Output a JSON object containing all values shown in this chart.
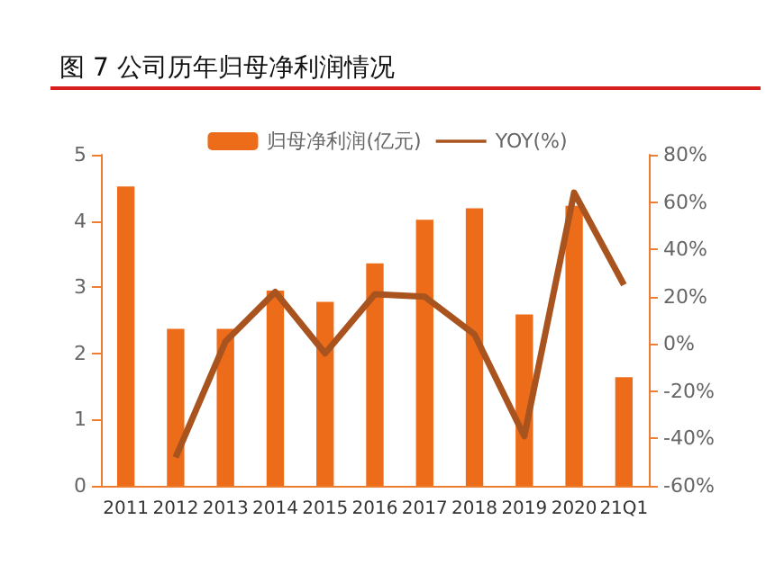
{
  "chart_data": {
    "type": "bar",
    "title": "图 7 公司历年归母净利润情况",
    "categories": [
      "2011",
      "2012",
      "2013",
      "2014",
      "2015",
      "2016",
      "2017",
      "2018",
      "2019",
      "2020",
      "21Q1"
    ],
    "series": [
      {
        "name": "归母净利润(亿元)",
        "color": "#ed6c1a",
        "values": [
          4.52,
          2.37,
          2.37,
          2.95,
          2.78,
          3.36,
          4.02,
          4.19,
          2.59,
          4.23,
          1.64
        ]
      },
      {
        "name": "YOY(%)",
        "type": "line",
        "axis": "y2",
        "color": "#a9531f",
        "values": [
          null,
          -48,
          1,
          22,
          -4,
          21,
          20,
          4,
          -39,
          64,
          25
        ]
      }
    ],
    "ylim": [
      0,
      5
    ],
    "yticks": [
      0,
      1,
      2,
      3,
      4,
      5
    ],
    "y2lim": [
      -60,
      80
    ],
    "y2ticks": [
      {
        "value": -60,
        "label": "-60%"
      },
      {
        "value": -40,
        "label": "-40%"
      },
      {
        "value": -20,
        "label": "-20%"
      },
      {
        "value": 0,
        "label": "0%"
      },
      {
        "value": 20,
        "label": "20%"
      },
      {
        "value": 40,
        "label": "40%"
      },
      {
        "value": 60,
        "label": "60%"
      },
      {
        "value": 80,
        "label": "80%"
      }
    ],
    "grid": false,
    "legend": "top",
    "marker": "none",
    "line_style": "solid"
  }
}
